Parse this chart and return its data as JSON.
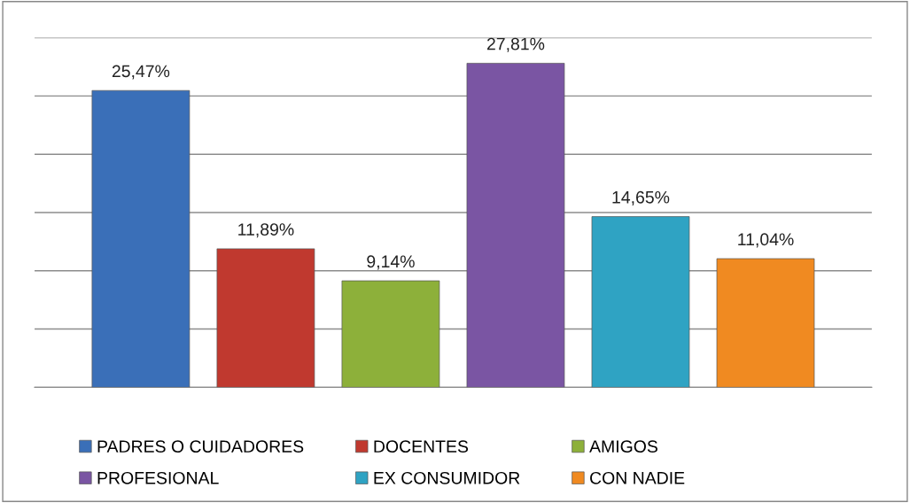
{
  "chart_data": {
    "type": "bar",
    "categories": [
      null,
      null,
      null,
      null,
      null,
      null
    ],
    "stacked": true,
    "series": [
      {
        "name": "PADRES O CUIDADORES",
        "color": "#3a6fb8",
        "values": [
          25.47,
          null,
          null,
          null,
          null,
          null
        ],
        "value_labels": [
          "25,47%",
          null,
          null,
          null,
          null,
          null
        ]
      },
      {
        "name": "DOCENTES",
        "color": "#c0392f",
        "values": [
          null,
          11.89,
          null,
          null,
          null,
          null
        ],
        "value_labels": [
          null,
          "11,89%",
          null,
          null,
          null,
          null
        ]
      },
      {
        "name": "AMIGOS",
        "color": "#8db03a",
        "values": [
          null,
          null,
          9.14,
          null,
          null,
          null
        ],
        "value_labels": [
          null,
          null,
          "9,14%",
          null,
          null,
          null
        ]
      },
      {
        "name": "PROFESIONAL",
        "color": "#7a55a3",
        "values": [
          null,
          null,
          null,
          27.81,
          null,
          null
        ],
        "value_labels": [
          null,
          null,
          null,
          "27,81%",
          null,
          null
        ]
      },
      {
        "name": "EX CONSUMIDOR",
        "color": "#2fa3c3",
        "values": [
          null,
          null,
          null,
          null,
          14.65,
          null
        ],
        "value_labels": [
          null,
          null,
          null,
          null,
          "14,65%",
          null
        ]
      },
      {
        "name": "CON NADIE",
        "color": "#f08a21",
        "values": [
          null,
          null,
          null,
          null,
          null,
          11.04
        ],
        "value_labels": [
          null,
          null,
          null,
          null,
          null,
          "11,04%"
        ]
      }
    ],
    "ylim": [
      0,
      30
    ],
    "yticks": [
      {
        "value": 0,
        "label": null
      },
      {
        "value": 5,
        "label": null
      },
      {
        "value": 10,
        "label": null
      },
      {
        "value": 15,
        "label": null
      },
      {
        "value": 20,
        "label": null
      },
      {
        "value": 25,
        "label": null
      },
      {
        "value": 30,
        "label": null
      }
    ],
    "tick_labels": false,
    "grid": "y",
    "legend": "bottom"
  }
}
